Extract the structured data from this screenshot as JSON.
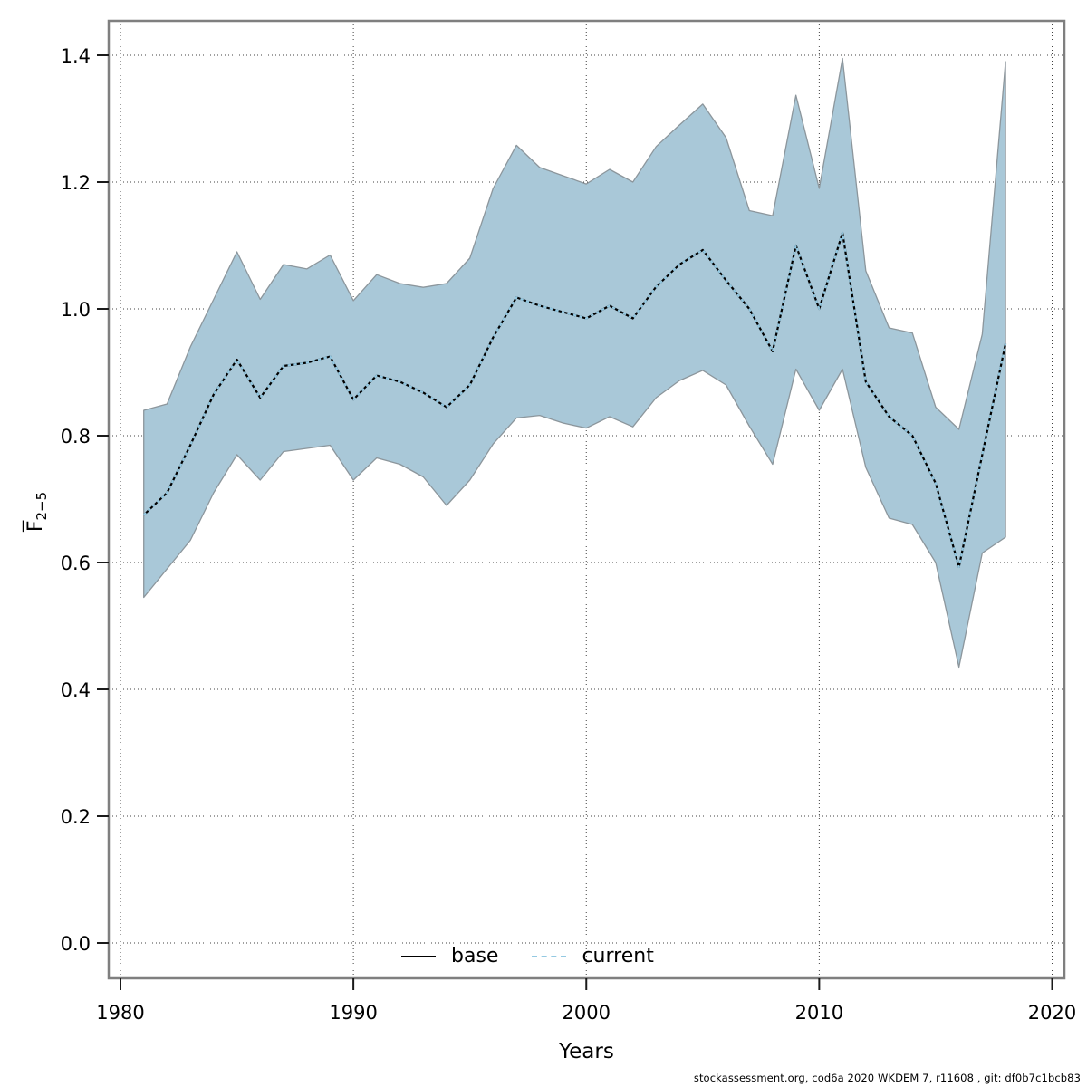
{
  "page": {
    "background": "#ffffff"
  },
  "axes": {
    "xlabel": "Years",
    "ylabel_main": "F",
    "ylabel_sub": "2−5"
  },
  "legend": {
    "items": [
      {
        "label": "base",
        "color": "#000000",
        "style": "solid"
      },
      {
        "label": "current",
        "color": "#94C9E2",
        "style": "dashed"
      }
    ]
  },
  "footer": {
    "credit": "stockassessment.org, cod6a 2020 WKDEM 7, r11608 , git: df0b7c1bcb83"
  },
  "colors": {
    "band_fill": "#A9C8D8",
    "band_edge": "#8C969C",
    "base_line": "#000000",
    "current_line": "#94C9E2",
    "grid": "#404040",
    "border": "#7F7F7F",
    "tick": "#1A1A1A",
    "text": "#000000"
  },
  "chart_data": {
    "type": "line",
    "title": "",
    "xlabel": "Years",
    "ylabel": "F̄2−5",
    "grid": true,
    "legend_position": "bottom-center-inside",
    "xlim": [
      1979.5,
      2020.5
    ],
    "ylim": [
      -0.06,
      1.45
    ],
    "x_ticks": [
      1980,
      1990,
      2000,
      2010,
      2020
    ],
    "y_ticks": [
      0.0,
      0.2,
      0.4,
      0.6,
      0.8,
      1.0,
      1.2,
      1.4
    ],
    "y_tick_labels": [
      "0.0",
      "0.2",
      "0.4",
      "0.6",
      "0.8",
      "1.0",
      "1.2",
      "1.4"
    ],
    "years": [
      1981,
      1982,
      1983,
      1984,
      1985,
      1986,
      1987,
      1988,
      1989,
      1990,
      1991,
      1992,
      1993,
      1994,
      1995,
      1996,
      1997,
      1998,
      1999,
      2000,
      2001,
      2002,
      2003,
      2004,
      2005,
      2006,
      2007,
      2008,
      2009,
      2010,
      2011,
      2012,
      2013,
      2014,
      2015,
      2016,
      2017,
      2018
    ],
    "series": [
      {
        "name": "base",
        "style": "solid",
        "color": "#000000",
        "values": [
          0.675,
          0.71,
          0.785,
          0.865,
          0.92,
          0.86,
          0.91,
          0.915,
          0.925,
          0.857,
          0.895,
          0.885,
          0.868,
          0.845,
          0.88,
          0.955,
          1.018,
          1.005,
          0.995,
          0.985,
          1.005,
          0.985,
          1.035,
          1.07,
          1.093,
          1.045,
          1.0,
          0.933,
          1.1,
          1.0,
          1.12,
          0.885,
          0.83,
          0.8,
          0.725,
          0.593,
          0.77,
          0.945
        ]
      },
      {
        "name": "current",
        "style": "dashed",
        "color": "#94C9E2",
        "values": [
          0.675,
          0.71,
          0.785,
          0.865,
          0.92,
          0.86,
          0.91,
          0.915,
          0.925,
          0.857,
          0.895,
          0.885,
          0.868,
          0.845,
          0.88,
          0.955,
          1.018,
          1.005,
          0.995,
          0.985,
          1.005,
          0.985,
          1.035,
          1.07,
          1.093,
          1.045,
          1.0,
          0.933,
          1.1,
          1.0,
          1.12,
          0.885,
          0.83,
          0.8,
          0.725,
          0.593,
          0.77,
          0.945
        ]
      }
    ],
    "band": {
      "name": "confidence-band",
      "lower": [
        0.545,
        0.59,
        0.635,
        0.71,
        0.77,
        0.73,
        0.775,
        0.78,
        0.785,
        0.73,
        0.765,
        0.755,
        0.735,
        0.69,
        0.73,
        0.787,
        0.828,
        0.832,
        0.82,
        0.812,
        0.83,
        0.814,
        0.86,
        0.887,
        0.903,
        0.88,
        0.815,
        0.755,
        0.905,
        0.84,
        0.905,
        0.75,
        0.67,
        0.66,
        0.6,
        0.435,
        0.615,
        0.64
      ],
      "upper": [
        0.84,
        0.85,
        0.94,
        1.015,
        1.09,
        1.015,
        1.07,
        1.063,
        1.085,
        1.013,
        1.054,
        1.04,
        1.034,
        1.04,
        1.08,
        1.19,
        1.258,
        1.223,
        1.21,
        1.197,
        1.22,
        1.2,
        1.256,
        1.29,
        1.323,
        1.27,
        1.155,
        1.147,
        1.337,
        1.19,
        1.395,
        1.06,
        0.97,
        0.962,
        0.845,
        0.81,
        0.96,
        1.39
      ]
    }
  }
}
